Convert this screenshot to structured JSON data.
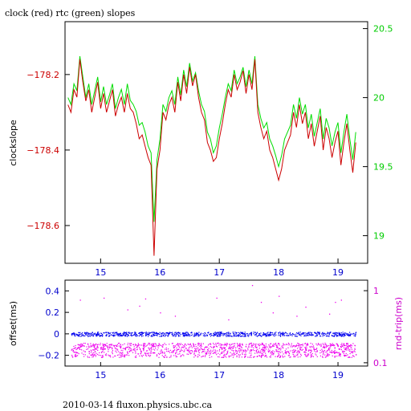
{
  "title": "clock (red) rtc (green) slopes",
  "footer": "2010-03-14 fluxon.physics.ubc.ca",
  "colors": {
    "red": "#cc0000",
    "green": "#00dd00",
    "blue": "#0000ee",
    "magenta": "#ee00ee",
    "black": "#000000"
  },
  "chart_data": [
    {
      "type": "line",
      "ylabel": "clockslope",
      "xlim": [
        14.4,
        19.5
      ],
      "ylim_left": [
        -178.7,
        -178.06
      ],
      "ylim_right": [
        18.8,
        20.55
      ],
      "x_ticks": [
        "15",
        "16",
        "17",
        "18",
        "19"
      ],
      "y_ticks_left": [
        "-178.2",
        "-178.4",
        "-178.6"
      ],
      "y_ticks_right": [
        "20.5",
        "20",
        "19.5",
        "19"
      ],
      "series": [
        {
          "name": "clock",
          "color": "#cc0000",
          "axis": "left",
          "x": [
            14.45,
            14.5,
            14.55,
            14.6,
            14.65,
            14.7,
            14.75,
            14.8,
            14.85,
            14.9,
            14.95,
            15.0,
            15.05,
            15.1,
            15.15,
            15.2,
            15.25,
            15.3,
            15.35,
            15.4,
            15.45,
            15.5,
            15.55,
            15.6,
            15.65,
            15.7,
            15.75,
            15.8,
            15.85,
            15.9,
            15.95,
            16.0,
            16.05,
            16.1,
            16.15,
            16.2,
            16.25,
            16.3,
            16.35,
            16.4,
            16.45,
            16.5,
            16.55,
            16.6,
            16.65,
            16.7,
            16.75,
            16.8,
            16.85,
            16.9,
            16.95,
            17.0,
            17.05,
            17.1,
            17.15,
            17.2,
            17.25,
            17.3,
            17.35,
            17.4,
            17.45,
            17.5,
            17.55,
            17.6,
            17.65,
            17.7,
            17.75,
            17.8,
            17.85,
            17.9,
            17.95,
            18.0,
            18.05,
            18.1,
            18.15,
            18.2,
            18.25,
            18.3,
            18.35,
            18.4,
            18.45,
            18.5,
            18.55,
            18.6,
            18.65,
            18.7,
            18.75,
            18.8,
            18.85,
            18.9,
            18.95,
            19.0,
            19.05,
            19.1,
            19.15,
            19.2,
            19.25,
            19.3
          ],
          "y": [
            -178.28,
            -178.3,
            -178.24,
            -178.26,
            -178.16,
            -178.22,
            -178.27,
            -178.24,
            -178.3,
            -178.26,
            -178.22,
            -178.29,
            -178.25,
            -178.3,
            -178.27,
            -178.24,
            -178.31,
            -178.28,
            -178.26,
            -178.3,
            -178.25,
            -178.29,
            -178.3,
            -178.33,
            -178.37,
            -178.36,
            -178.39,
            -178.42,
            -178.44,
            -178.68,
            -178.45,
            -178.4,
            -178.3,
            -178.32,
            -178.28,
            -178.26,
            -178.3,
            -178.22,
            -178.27,
            -178.2,
            -178.25,
            -178.18,
            -178.23,
            -178.2,
            -178.26,
            -178.3,
            -178.32,
            -178.38,
            -178.4,
            -178.43,
            -178.42,
            -178.37,
            -178.33,
            -178.28,
            -178.24,
            -178.26,
            -178.2,
            -178.24,
            -178.22,
            -178.19,
            -178.25,
            -178.2,
            -178.24,
            -178.16,
            -178.3,
            -178.34,
            -178.37,
            -178.35,
            -178.4,
            -178.42,
            -178.45,
            -178.48,
            -178.45,
            -178.4,
            -178.38,
            -178.36,
            -178.3,
            -178.34,
            -178.28,
            -178.33,
            -178.3,
            -178.37,
            -178.33,
            -178.39,
            -178.35,
            -178.31,
            -178.4,
            -178.34,
            -178.37,
            -178.42,
            -178.38,
            -178.35,
            -178.44,
            -178.38,
            -178.33,
            -178.4,
            -178.46,
            -178.38
          ]
        },
        {
          "name": "rtc",
          "color": "#00dd00",
          "axis": "right",
          "x": [
            14.45,
            14.5,
            14.55,
            14.6,
            14.65,
            14.7,
            14.75,
            14.8,
            14.85,
            14.9,
            14.95,
            15.0,
            15.05,
            15.1,
            15.15,
            15.2,
            15.25,
            15.3,
            15.35,
            15.4,
            15.45,
            15.5,
            15.55,
            15.6,
            15.65,
            15.7,
            15.75,
            15.8,
            15.85,
            15.9,
            15.95,
            16.0,
            16.05,
            16.1,
            16.15,
            16.2,
            16.25,
            16.3,
            16.35,
            16.4,
            16.45,
            16.5,
            16.55,
            16.6,
            16.65,
            16.7,
            16.75,
            16.8,
            16.85,
            16.9,
            16.95,
            17.0,
            17.05,
            17.1,
            17.15,
            17.2,
            17.25,
            17.3,
            17.35,
            17.4,
            17.45,
            17.5,
            17.55,
            17.6,
            17.65,
            17.7,
            17.75,
            17.8,
            17.85,
            17.9,
            17.95,
            18.0,
            18.05,
            18.1,
            18.15,
            18.2,
            18.25,
            18.3,
            18.35,
            18.4,
            18.45,
            18.5,
            18.55,
            18.6,
            18.65,
            18.7,
            18.75,
            18.8,
            18.85,
            18.9,
            18.95,
            19.0,
            19.05,
            19.1,
            19.15,
            19.2,
            19.25,
            19.3
          ],
          "y": [
            20.0,
            19.95,
            20.1,
            20.05,
            20.3,
            20.15,
            20.0,
            20.1,
            19.95,
            20.05,
            20.15,
            19.97,
            20.08,
            19.95,
            20.02,
            20.1,
            19.92,
            20.0,
            20.06,
            19.95,
            20.1,
            19.98,
            19.95,
            19.9,
            19.8,
            19.82,
            19.75,
            19.65,
            19.6,
            19.1,
            19.55,
            19.7,
            19.95,
            19.9,
            20.0,
            20.05,
            19.95,
            20.15,
            20.02,
            20.2,
            20.08,
            20.25,
            20.12,
            20.18,
            20.05,
            19.95,
            19.9,
            19.75,
            19.7,
            19.6,
            19.65,
            19.78,
            19.88,
            20.0,
            20.1,
            20.05,
            20.2,
            20.1,
            20.15,
            20.22,
            20.08,
            20.2,
            20.1,
            20.3,
            19.95,
            19.85,
            19.78,
            19.82,
            19.7,
            19.65,
            19.58,
            19.5,
            19.58,
            19.7,
            19.75,
            19.8,
            19.95,
            19.85,
            20.0,
            19.88,
            19.95,
            19.78,
            19.88,
            19.72,
            19.82,
            19.92,
            19.7,
            19.85,
            19.78,
            19.65,
            19.75,
            19.82,
            19.6,
            19.75,
            19.88,
            19.7,
            19.55,
            19.75
          ]
        }
      ]
    },
    {
      "type": "scatter",
      "ylabel_left": "offset(ms)",
      "ylabel_right": "rnd-trip(ms)",
      "xlim": [
        14.4,
        19.5
      ],
      "ylim_left": [
        -0.3,
        0.5
      ],
      "right_scale": "log",
      "ylim_right": [
        0.09,
        1.4
      ],
      "x_ticks": [
        "15",
        "16",
        "17",
        "18",
        "19"
      ],
      "y_ticks_left": [
        "0.4",
        "0.2",
        "0",
        "-0.2"
      ],
      "y_ticks_right": [
        "1",
        "0.1"
      ],
      "series": [
        {
          "name": "offset",
          "color": "#0000ee",
          "axis": "left",
          "x_range": [
            14.5,
            19.3
          ],
          "y_level": 0.0,
          "y_spread": 0.02
        },
        {
          "name": "rnd-trip",
          "color": "#ee00ee",
          "axis": "right",
          "x_range": [
            14.5,
            19.3
          ],
          "y_level": 0.15,
          "y_spread_low": 0.12,
          "y_spread_high": 0.19
        },
        {
          "name": "rnd-trip outliers",
          "color": "#ee00ee",
          "axis": "right",
          "x": [
            14.65,
            15.05,
            15.45,
            15.65,
            15.75,
            16.0,
            16.25,
            16.95,
            17.15,
            17.55,
            17.7,
            17.9,
            18.0,
            18.3,
            18.45,
            18.85,
            18.95,
            19.05
          ],
          "y": [
            0.75,
            0.8,
            0.55,
            0.62,
            0.78,
            0.5,
            0.45,
            0.8,
            0.4,
            1.2,
            0.7,
            0.5,
            0.85,
            0.45,
            0.6,
            0.48,
            0.7,
            0.75
          ]
        }
      ]
    }
  ]
}
